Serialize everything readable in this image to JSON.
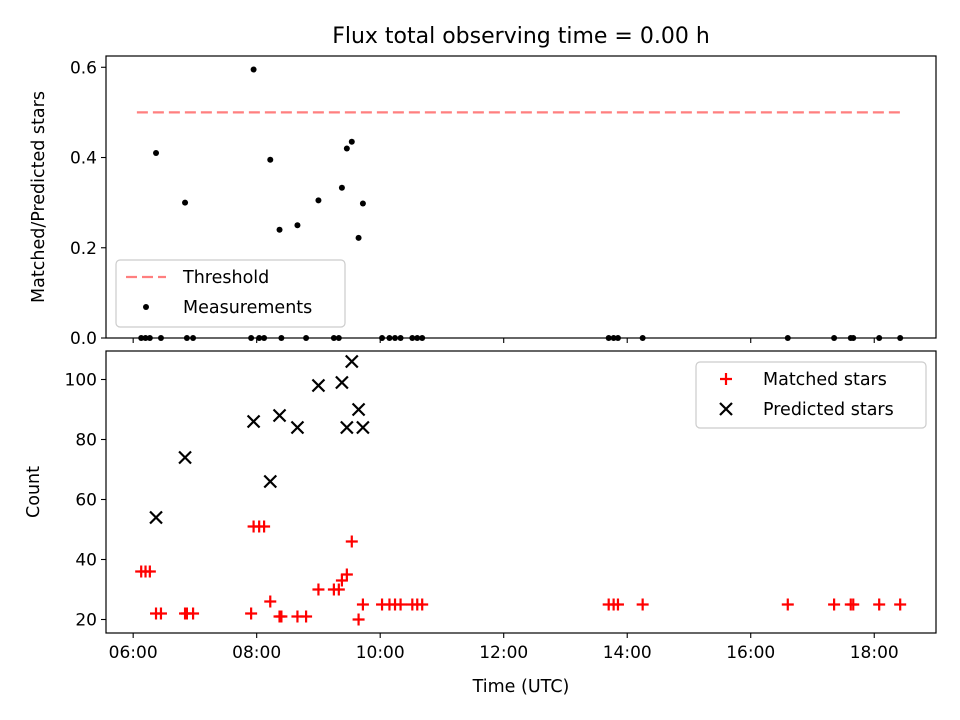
{
  "figure": {
    "title": "Flux total observing time = 0.00 h"
  },
  "chart_data": [
    {
      "type": "scatter",
      "ylabel": "Matched/Predicted stars",
      "xlabel": "",
      "xlim": [
        5.56,
        19.0
      ],
      "ylim": [
        0,
        0.625
      ],
      "yticks": [
        0,
        0.2,
        0.4,
        0.6
      ],
      "ytick_labels": [
        "0.0",
        "0.2",
        "0.4",
        "0.6"
      ],
      "legend_position": "lower-left",
      "threshold": {
        "name": "Threshold",
        "y": 0.5,
        "x": [
          6.06,
          18.42
        ],
        "color": "#ff7f7f"
      },
      "series": [
        {
          "name": "Measurements",
          "color": "#000000",
          "marker": "dot",
          "points": [
            [
              6.37,
              0.41
            ],
            [
              6.84,
              0.3
            ],
            [
              7.95,
              0.595
            ],
            [
              8.22,
              0.395
            ],
            [
              8.37,
              0.24
            ],
            [
              8.66,
              0.25
            ],
            [
              9.0,
              0.305
            ],
            [
              9.38,
              0.333
            ],
            [
              9.46,
              0.42
            ],
            [
              9.54,
              0.435
            ],
            [
              9.65,
              0.222
            ],
            [
              9.72,
              0.298
            ],
            [
              6.13,
              0.0
            ],
            [
              6.2,
              0.0
            ],
            [
              6.27,
              0.0
            ],
            [
              6.45,
              0.0
            ],
            [
              6.87,
              0.0
            ],
            [
              6.97,
              0.0
            ],
            [
              7.91,
              0.0
            ],
            [
              8.04,
              0.0
            ],
            [
              8.12,
              0.0
            ],
            [
              8.4,
              0.0
            ],
            [
              8.8,
              0.0
            ],
            [
              9.25,
              0.0
            ],
            [
              9.33,
              0.0
            ],
            [
              10.03,
              0.0
            ],
            [
              10.15,
              0.0
            ],
            [
              10.24,
              0.0
            ],
            [
              10.33,
              0.0
            ],
            [
              10.52,
              0.0
            ],
            [
              10.6,
              0.0
            ],
            [
              10.68,
              0.0
            ],
            [
              13.7,
              0.0
            ],
            [
              13.78,
              0.0
            ],
            [
              13.85,
              0.0
            ],
            [
              14.25,
              0.0
            ],
            [
              16.6,
              0.0
            ],
            [
              17.35,
              0.0
            ],
            [
              17.62,
              0.0
            ],
            [
              17.66,
              0.0
            ],
            [
              18.08,
              0.0
            ],
            [
              18.42,
              0.0
            ]
          ]
        }
      ]
    },
    {
      "type": "scatter",
      "ylabel": "Count",
      "xlabel": "Time (UTC)",
      "xlim": [
        5.56,
        19.0
      ],
      "ylim": [
        15.5,
        109.5
      ],
      "yticks": [
        20,
        40,
        60,
        80,
        100
      ],
      "ytick_labels": [
        "20",
        "40",
        "60",
        "80",
        "100"
      ],
      "xticks": [
        6,
        8,
        10,
        12,
        14,
        16,
        18
      ],
      "xtick_labels": [
        "06:00",
        "08:00",
        "10:00",
        "12:00",
        "14:00",
        "16:00",
        "18:00"
      ],
      "legend_position": "upper-right",
      "series": [
        {
          "name": "Matched stars",
          "color": "#ff0000",
          "marker": "plus",
          "points": [
            [
              6.13,
              36
            ],
            [
              6.2,
              36
            ],
            [
              6.27,
              36
            ],
            [
              6.37,
              22
            ],
            [
              6.45,
              22
            ],
            [
              6.84,
              22
            ],
            [
              6.87,
              22
            ],
            [
              6.97,
              22
            ],
            [
              7.91,
              22
            ],
            [
              7.95,
              51
            ],
            [
              8.04,
              51
            ],
            [
              8.12,
              51
            ],
            [
              8.22,
              26
            ],
            [
              8.37,
              21
            ],
            [
              8.4,
              21
            ],
            [
              8.66,
              21
            ],
            [
              8.8,
              21
            ],
            [
              9.0,
              30
            ],
            [
              9.25,
              30
            ],
            [
              9.33,
              30
            ],
            [
              9.38,
              33
            ],
            [
              9.46,
              35
            ],
            [
              9.54,
              46
            ],
            [
              9.65,
              20
            ],
            [
              9.72,
              25
            ],
            [
              10.03,
              25
            ],
            [
              10.15,
              25
            ],
            [
              10.24,
              25
            ],
            [
              10.33,
              25
            ],
            [
              10.52,
              25
            ],
            [
              10.6,
              25
            ],
            [
              10.68,
              25
            ],
            [
              13.7,
              25
            ],
            [
              13.78,
              25
            ],
            [
              13.85,
              25
            ],
            [
              14.25,
              25
            ],
            [
              16.6,
              25
            ],
            [
              17.35,
              25
            ],
            [
              17.62,
              25
            ],
            [
              17.66,
              25
            ],
            [
              18.08,
              25
            ],
            [
              18.42,
              25
            ]
          ]
        },
        {
          "name": "Predicted stars",
          "color": "#000000",
          "marker": "x",
          "points": [
            [
              6.37,
              54
            ],
            [
              6.84,
              74
            ],
            [
              7.95,
              86
            ],
            [
              8.22,
              66
            ],
            [
              8.37,
              88
            ],
            [
              8.66,
              84
            ],
            [
              9.0,
              98
            ],
            [
              9.38,
              99
            ],
            [
              9.46,
              84
            ],
            [
              9.54,
              106
            ],
            [
              9.65,
              90
            ],
            [
              9.72,
              84
            ]
          ]
        }
      ]
    }
  ]
}
